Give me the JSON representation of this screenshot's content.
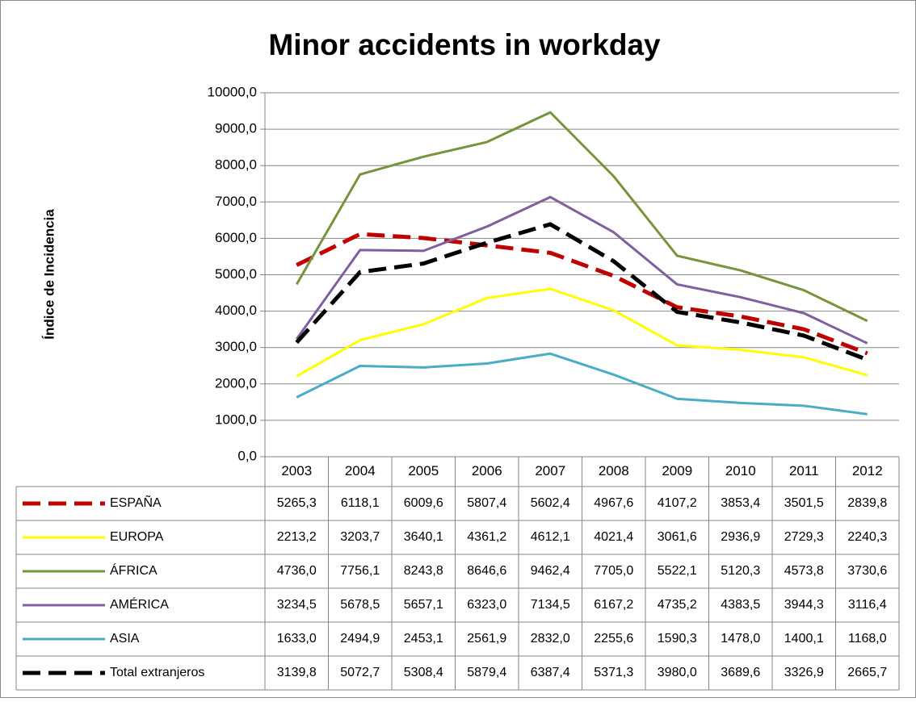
{
  "chart_data": {
    "type": "line",
    "title": "Minor accidents in workday",
    "y_label": "Índice de Incidencia",
    "categories": [
      "2003",
      "2004",
      "2005",
      "2006",
      "2007",
      "2008",
      "2009",
      "2010",
      "2011",
      "2012"
    ],
    "ylim": [
      0,
      10000
    ],
    "yticks": [
      {
        "value": 0,
        "label": "0,0"
      },
      {
        "value": 1000,
        "label": "1000,0"
      },
      {
        "value": 2000,
        "label": "2000,0"
      },
      {
        "value": 3000,
        "label": "3000,0"
      },
      {
        "value": 4000,
        "label": "4000,0"
      },
      {
        "value": 5000,
        "label": "5000,0"
      },
      {
        "value": 6000,
        "label": "6000,0"
      },
      {
        "value": 7000,
        "label": "7000,0"
      },
      {
        "value": 8000,
        "label": "8000,0"
      },
      {
        "value": 9000,
        "label": "9000,0"
      },
      {
        "value": 10000,
        "label": "10000,0"
      }
    ],
    "grid": true,
    "series": [
      {
        "name": "ESPAÑA",
        "color": "#c00000",
        "dashed": true,
        "values": [
          5265.3,
          6118.1,
          6009.6,
          5807.4,
          5602.4,
          4967.6,
          4107.2,
          3853.4,
          3501.5,
          2839.8
        ],
        "value_labels": [
          "5265,3",
          "6118,1",
          "6009,6",
          "5807,4",
          "5602,4",
          "4967,6",
          "4107,2",
          "3853,4",
          "3501,5",
          "2839,8"
        ]
      },
      {
        "name": "EUROPA",
        "color": "#ffff00",
        "dashed": false,
        "values": [
          2213.2,
          3203.7,
          3640.1,
          4361.2,
          4612.1,
          4021.4,
          3061.6,
          2936.9,
          2729.3,
          2240.3
        ],
        "value_labels": [
          "2213,2",
          "3203,7",
          "3640,1",
          "4361,2",
          "4612,1",
          "4021,4",
          "3061,6",
          "2936,9",
          "2729,3",
          "2240,3"
        ]
      },
      {
        "name": "ÁFRICA",
        "color": "#77933c",
        "dashed": false,
        "values": [
          4736.0,
          7756.1,
          8243.8,
          8646.6,
          9462.4,
          7705.0,
          5522.1,
          5120.3,
          4573.8,
          3730.6
        ],
        "value_labels": [
          "4736,0",
          "7756,1",
          "8243,8",
          "8646,6",
          "9462,4",
          "7705,0",
          "5522,1",
          "5120,3",
          "4573,8",
          "3730,6"
        ]
      },
      {
        "name": "AMÉRICA",
        "color": "#7f5fa0",
        "dashed": false,
        "values": [
          3234.5,
          5678.5,
          5657.1,
          6323.0,
          7134.5,
          6167.2,
          4735.2,
          4383.5,
          3944.3,
          3116.4
        ],
        "value_labels": [
          "3234,5",
          "5678,5",
          "5657,1",
          "6323,0",
          "7134,5",
          "6167,2",
          "4735,2",
          "4383,5",
          "3944,3",
          "3116,4"
        ]
      },
      {
        "name": "ASIA",
        "color": "#4bacc6",
        "dashed": false,
        "values": [
          1633.0,
          2494.9,
          2453.1,
          2561.9,
          2832.0,
          2255.6,
          1590.3,
          1478.0,
          1400.1,
          1168.0
        ],
        "value_labels": [
          "1633,0",
          "2494,9",
          "2453,1",
          "2561,9",
          "2832,0",
          "2255,6",
          "1590,3",
          "1478,0",
          "1400,1",
          "1168,0"
        ]
      },
      {
        "name": "Total extranjeros",
        "color": "#000000",
        "dashed": true,
        "values": [
          3139.8,
          5072.7,
          5308.4,
          5879.4,
          6387.4,
          5371.3,
          3980.0,
          3689.6,
          3326.9,
          2665.7
        ],
        "value_labels": [
          "3139,8",
          "5072,7",
          "5308,4",
          "5879,4",
          "6387,4",
          "5371,3",
          "3980,0",
          "3689,6",
          "3326,9",
          "2665,7"
        ]
      }
    ]
  }
}
